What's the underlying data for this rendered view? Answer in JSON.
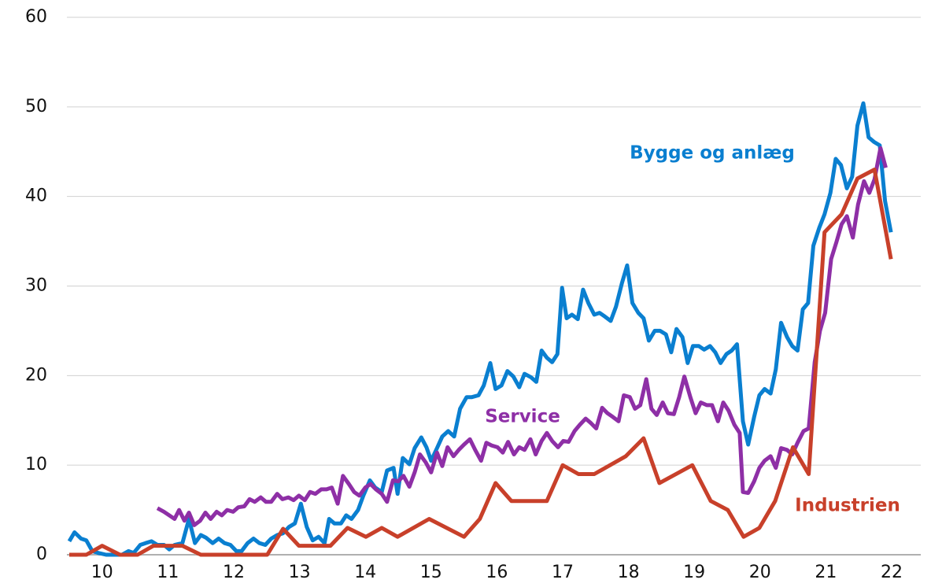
{
  "chart_data": {
    "type": "line",
    "xlim": [
      2010,
      2022.95
    ],
    "xticks": [
      {
        "value": 2010.5,
        "label": "10"
      },
      {
        "value": 2011.5,
        "label": "11"
      },
      {
        "value": 2012.5,
        "label": "12"
      },
      {
        "value": 2013.5,
        "label": "13"
      },
      {
        "value": 2014.5,
        "label": "14"
      },
      {
        "value": 2015.5,
        "label": "15"
      },
      {
        "value": 2016.5,
        "label": "16"
      },
      {
        "value": 2017.5,
        "label": "17"
      },
      {
        "value": 2018.5,
        "label": "18"
      },
      {
        "value": 2019.5,
        "label": "19"
      },
      {
        "value": 2020.5,
        "label": "20"
      },
      {
        "value": 2021.5,
        "label": "21"
      },
      {
        "value": 2022.5,
        "label": "22"
      }
    ],
    "ylim": [
      0,
      60
    ],
    "yticks": [
      0,
      10,
      20,
      30,
      40,
      50,
      60
    ],
    "grid": true,
    "series": [
      {
        "name": "Bygge og anlæg",
        "color": "#0a7fd0",
        "x": [
          2010.0,
          2010.08,
          2010.18,
          2010.26,
          2010.35,
          2010.44,
          2010.56,
          2010.68,
          2010.8,
          2010.9,
          2010.98,
          2011.08,
          2011.16,
          2011.25,
          2011.34,
          2011.44,
          2011.52,
          2011.6,
          2011.72,
          2011.82,
          2011.91,
          2012.0,
          2012.08,
          2012.18,
          2012.27,
          2012.36,
          2012.45,
          2012.54,
          2012.62,
          2012.71,
          2012.8,
          2012.89,
          2012.98,
          2013.07,
          2013.16,
          2013.25,
          2013.34,
          2013.43,
          2013.52,
          2013.61,
          2013.7,
          2013.79,
          2013.88,
          2013.95,
          2014.03,
          2014.13,
          2014.21,
          2014.29,
          2014.39,
          2014.47,
          2014.57,
          2014.65,
          2014.75,
          2014.83,
          2014.93,
          2014.99,
          2015.07,
          2015.17,
          2015.25,
          2015.35,
          2015.43,
          2015.5,
          2015.59,
          2015.67,
          2015.76,
          2015.85,
          2015.94,
          2016.04,
          2016.12,
          2016.22,
          2016.3,
          2016.4,
          2016.48,
          2016.57,
          2016.66,
          2016.75,
          2016.84,
          2016.92,
          2017.02,
          2017.1,
          2017.18,
          2017.26,
          2017.34,
          2017.42,
          2017.49,
          2017.56,
          2017.64,
          2017.73,
          2017.81,
          2017.89,
          2017.98,
          2018.06,
          2018.14,
          2018.23,
          2018.31,
          2018.4,
          2018.48,
          2018.56,
          2018.65,
          2018.73,
          2018.81,
          2018.9,
          2018.98,
          2019.07,
          2019.15,
          2019.23,
          2019.32,
          2019.4,
          2019.48,
          2019.57,
          2019.65,
          2019.74,
          2019.82,
          2019.9,
          2019.99,
          2020.07,
          2020.15,
          2020.24,
          2020.32,
          2020.41,
          2020.49,
          2020.57,
          2020.66,
          2020.74,
          2020.82,
          2020.91,
          2020.99,
          2021.07,
          2021.15,
          2021.23,
          2021.31,
          2021.4,
          2021.48,
          2021.57,
          2021.65,
          2021.73,
          2021.82,
          2021.9,
          2021.98,
          2022.07,
          2022.15,
          2022.23,
          2022.32,
          2022.4,
          2022.49
        ],
        "values": [
          1.5,
          2.5,
          1.8,
          1.6,
          0.4,
          0.2,
          0,
          0,
          0,
          0.4,
          0.2,
          1.1,
          1.3,
          1.5,
          1.1,
          1.1,
          0.6,
          1.1,
          1.3,
          4.0,
          1.3,
          2.2,
          1.9,
          1.3,
          1.8,
          1.3,
          1.1,
          0.4,
          0.4,
          1.3,
          1.8,
          1.3,
          1.1,
          1.8,
          2.2,
          2.4,
          3.1,
          3.5,
          5.7,
          3.1,
          1.6,
          2.0,
          1.3,
          4.0,
          3.5,
          3.5,
          4.4,
          4.0,
          5.0,
          6.6,
          8.3,
          7.5,
          7.0,
          9.4,
          9.7,
          6.8,
          10.8,
          10.1,
          11.9,
          13.1,
          12.0,
          10.5,
          11.9,
          13.2,
          13.8,
          13.2,
          16.3,
          17.6,
          17.6,
          17.8,
          18.9,
          21.4,
          18.5,
          18.9,
          20.5,
          19.9,
          18.7,
          20.2,
          19.8,
          19.3,
          22.8,
          22.0,
          21.5,
          22.4,
          29.8,
          26.4,
          26.8,
          26.3,
          29.6,
          28.1,
          26.8,
          27.0,
          26.6,
          26.1,
          27.7,
          30.3,
          32.3,
          28.1,
          27.0,
          26.4,
          23.9,
          25.0,
          25.0,
          24.6,
          22.6,
          25.2,
          24.3,
          21.4,
          23.3,
          23.3,
          22.9,
          23.3,
          22.6,
          21.4,
          22.4,
          22.8,
          23.5,
          14.9,
          12.3,
          15.4,
          17.8,
          18.5,
          18.0,
          20.7,
          25.9,
          24.3,
          23.3,
          22.8,
          27.4,
          28.1,
          34.5,
          36.5,
          38.0,
          40.4,
          44.2,
          43.5,
          40.9,
          42.2,
          47.9,
          50.4,
          46.6,
          46.1,
          45.7,
          39.5,
          36.0
        ]
      },
      {
        "name": "Service",
        "color": "#8e2fa6",
        "x": [
          2011.34,
          2011.44,
          2011.52,
          2011.6,
          2011.67,
          2011.75,
          2011.82,
          2011.9,
          2011.99,
          2012.07,
          2012.15,
          2012.24,
          2012.32,
          2012.4,
          2012.49,
          2012.57,
          2012.66,
          2012.74,
          2012.82,
          2012.91,
          2012.99,
          2013.07,
          2013.16,
          2013.24,
          2013.33,
          2013.41,
          2013.49,
          2013.58,
          2013.66,
          2013.74,
          2013.83,
          2013.91,
          2013.99,
          2014.08,
          2014.16,
          2014.25,
          2014.33,
          2014.41,
          2014.5,
          2014.58,
          2014.66,
          2014.75,
          2014.83,
          2014.92,
          2015.0,
          2015.08,
          2015.17,
          2015.25,
          2015.33,
          2015.42,
          2015.5,
          2015.59,
          2015.67,
          2015.75,
          2015.84,
          2015.92,
          2016.0,
          2016.09,
          2016.17,
          2016.26,
          2016.34,
          2016.42,
          2016.51,
          2016.59,
          2016.67,
          2016.76,
          2016.84,
          2016.92,
          2017.01,
          2017.09,
          2017.18,
          2017.26,
          2017.34,
          2017.43,
          2017.51,
          2017.59,
          2017.68,
          2017.76,
          2017.85,
          2017.93,
          2018.01,
          2018.1,
          2018.18,
          2018.26,
          2018.35,
          2018.43,
          2018.52,
          2018.6,
          2018.68,
          2018.77,
          2018.85,
          2018.93,
          2019.02,
          2019.1,
          2019.19,
          2019.27,
          2019.35,
          2019.44,
          2019.52,
          2019.6,
          2019.69,
          2019.77,
          2019.86,
          2019.94,
          2020.02,
          2020.11,
          2020.19,
          2020.24,
          2020.32,
          2020.41,
          2020.49,
          2020.57,
          2020.66,
          2020.74,
          2020.82,
          2020.91,
          2020.99,
          2021.07,
          2021.16,
          2021.24,
          2021.33,
          2021.41,
          2021.49,
          2021.58,
          2021.66,
          2021.74,
          2021.82,
          2021.91,
          2021.99,
          2022.08,
          2022.16,
          2022.24,
          2022.33,
          2022.41
        ],
        "values": [
          5.2,
          4.8,
          4.4,
          4.0,
          5.0,
          3.8,
          4.7,
          3.3,
          3.8,
          4.7,
          4.0,
          4.8,
          4.4,
          5.0,
          4.8,
          5.3,
          5.4,
          6.2,
          5.9,
          6.4,
          5.9,
          5.9,
          6.8,
          6.2,
          6.4,
          6.1,
          6.6,
          6.1,
          7.0,
          6.8,
          7.3,
          7.3,
          7.5,
          5.7,
          8.8,
          7.9,
          7.0,
          6.6,
          7.5,
          7.9,
          7.3,
          6.8,
          5.9,
          8.3,
          8.2,
          8.8,
          7.6,
          9.2,
          11.2,
          10.3,
          9.2,
          11.4,
          9.9,
          12.0,
          11.0,
          11.7,
          12.3,
          12.9,
          11.7,
          10.5,
          12.5,
          12.2,
          12.0,
          11.4,
          12.6,
          11.2,
          12.0,
          11.7,
          12.9,
          11.2,
          12.7,
          13.6,
          12.7,
          12.0,
          12.7,
          12.6,
          13.8,
          14.5,
          15.2,
          14.7,
          14.1,
          16.4,
          15.8,
          15.4,
          14.9,
          17.8,
          17.6,
          16.3,
          16.7,
          19.6,
          16.3,
          15.6,
          17.0,
          15.8,
          15.7,
          17.6,
          19.9,
          17.6,
          15.8,
          17.0,
          16.7,
          16.7,
          14.9,
          17.0,
          16.1,
          14.5,
          13.6,
          7.0,
          6.9,
          8.2,
          9.7,
          10.5,
          11.0,
          9.7,
          11.9,
          11.7,
          11.2,
          12.5,
          13.8,
          14.1,
          21.5,
          25.0,
          27.0,
          33.0,
          34.9,
          36.9,
          37.8,
          35.4,
          39.1,
          41.7,
          40.4,
          41.9,
          45.4,
          43.2
        ]
      },
      {
        "name": "Industrien",
        "color": "#c8402a",
        "x": [
          2010.0,
          2010.26,
          2010.5,
          2010.77,
          2011.04,
          2011.28,
          2011.52,
          2011.72,
          2012.0,
          2012.54,
          2013.01,
          2013.25,
          2013.49,
          2013.97,
          2014.23,
          2014.51,
          2014.75,
          2014.99,
          2015.47,
          2016.0,
          2016.24,
          2016.48,
          2016.72,
          2017.26,
          2017.5,
          2017.74,
          2017.98,
          2018.46,
          2018.73,
          2018.97,
          2019.47,
          2019.75,
          2020.01,
          2020.25,
          2020.49,
          2020.73,
          2021.0,
          2021.24,
          2021.48,
          2021.74,
          2021.98,
          2022.24,
          2022.49
        ],
        "values": [
          0,
          0,
          1,
          0,
          0,
          1,
          1,
          1,
          0,
          0,
          0,
          2.9,
          1,
          1,
          3,
          2,
          3,
          2,
          4,
          2,
          4,
          8,
          6,
          6,
          10,
          9,
          9,
          11,
          13,
          8,
          10,
          6,
          5,
          2,
          3,
          6,
          12,
          9,
          36,
          38,
          42,
          43,
          33
        ]
      }
    ]
  }
}
